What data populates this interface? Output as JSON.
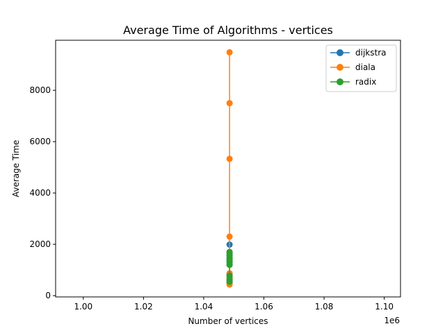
{
  "chart_data": {
    "type": "line",
    "title": "Average Time of Algorithms - vertices",
    "xlabel": "Number of vertices",
    "ylabel": "Average Time",
    "x_offset_label": "1e6",
    "xlim": [
      0.9908,
      1.1054
    ],
    "ylim": [
      -50,
      9950
    ],
    "xticks": [
      1.0,
      1.02,
      1.04,
      1.06,
      1.08,
      1.1
    ],
    "xtick_labels": [
      "1.00",
      "1.02",
      "1.04",
      "1.06",
      "1.08",
      "1.10"
    ],
    "yticks": [
      0,
      2000,
      4000,
      6000,
      8000
    ],
    "ytick_labels": [
      "0",
      "2000",
      "4000",
      "6000",
      "8000"
    ],
    "grid": false,
    "legend_position": "top-right",
    "series": [
      {
        "name": "dijkstra",
        "color": "#1f77b4",
        "x": [
          1.0486,
          1.0486,
          1.0486,
          1.0486,
          1.0486,
          1.0486,
          1.0486,
          1.0486,
          1.0486,
          1.0486
        ],
        "y": [
          1990,
          1700,
          1550,
          1450,
          1300,
          1200,
          800,
          700,
          600,
          500
        ]
      },
      {
        "name": "diala",
        "color": "#ff7f0e",
        "x": [
          1.0486,
          1.0486,
          1.0486,
          1.0486,
          1.0486,
          1.0486,
          1.0486,
          1.0486
        ],
        "y": [
          9480,
          7500,
          5330,
          2300,
          870,
          650,
          520,
          430
        ]
      },
      {
        "name": "radix",
        "color": "#2ca02c",
        "x": [
          1.0486,
          1.0486,
          1.0486,
          1.0486,
          1.0486,
          1.0486,
          1.0486,
          1.0486,
          1.0486,
          1.0486
        ],
        "y": [
          1700,
          1620,
          1550,
          1450,
          1380,
          1300,
          1200,
          780,
          620,
          540
        ]
      }
    ]
  }
}
